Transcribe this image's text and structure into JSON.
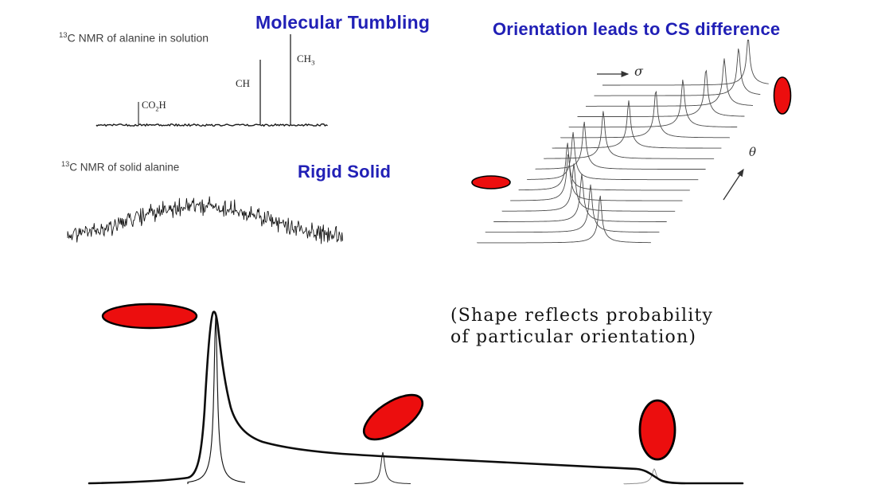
{
  "colors": {
    "title_blue": "#2120b6",
    "red_fill": "#ec0e0e",
    "ink": "#1c1c1c"
  },
  "titles": {
    "molecular_tumbling": "Molecular Tumbling",
    "orientation_cs": "Orientation leads to CS difference",
    "rigid_solid": "Rigid Solid"
  },
  "solution_spectrum": {
    "caption_sup": "13",
    "caption_text": "C NMR of alanine in solution",
    "peaks": [
      {
        "id": "co2h",
        "label_main": "CO",
        "label_sub": "2",
        "label_tail": "H"
      },
      {
        "id": "ch",
        "label_main": "CH",
        "label_sub": "",
        "label_tail": ""
      },
      {
        "id": "ch3",
        "label_main": "CH",
        "label_sub": "3",
        "label_tail": ""
      }
    ]
  },
  "solid_spectrum": {
    "caption_sup": "13",
    "caption_text": "C NMR of solid alanine"
  },
  "orientation_diagram": {
    "sigma_label": "σ",
    "theta_label": "θ"
  },
  "powder_note": {
    "line1": "(Shape reflects probability",
    "line2": "of particular orientation)"
  }
}
